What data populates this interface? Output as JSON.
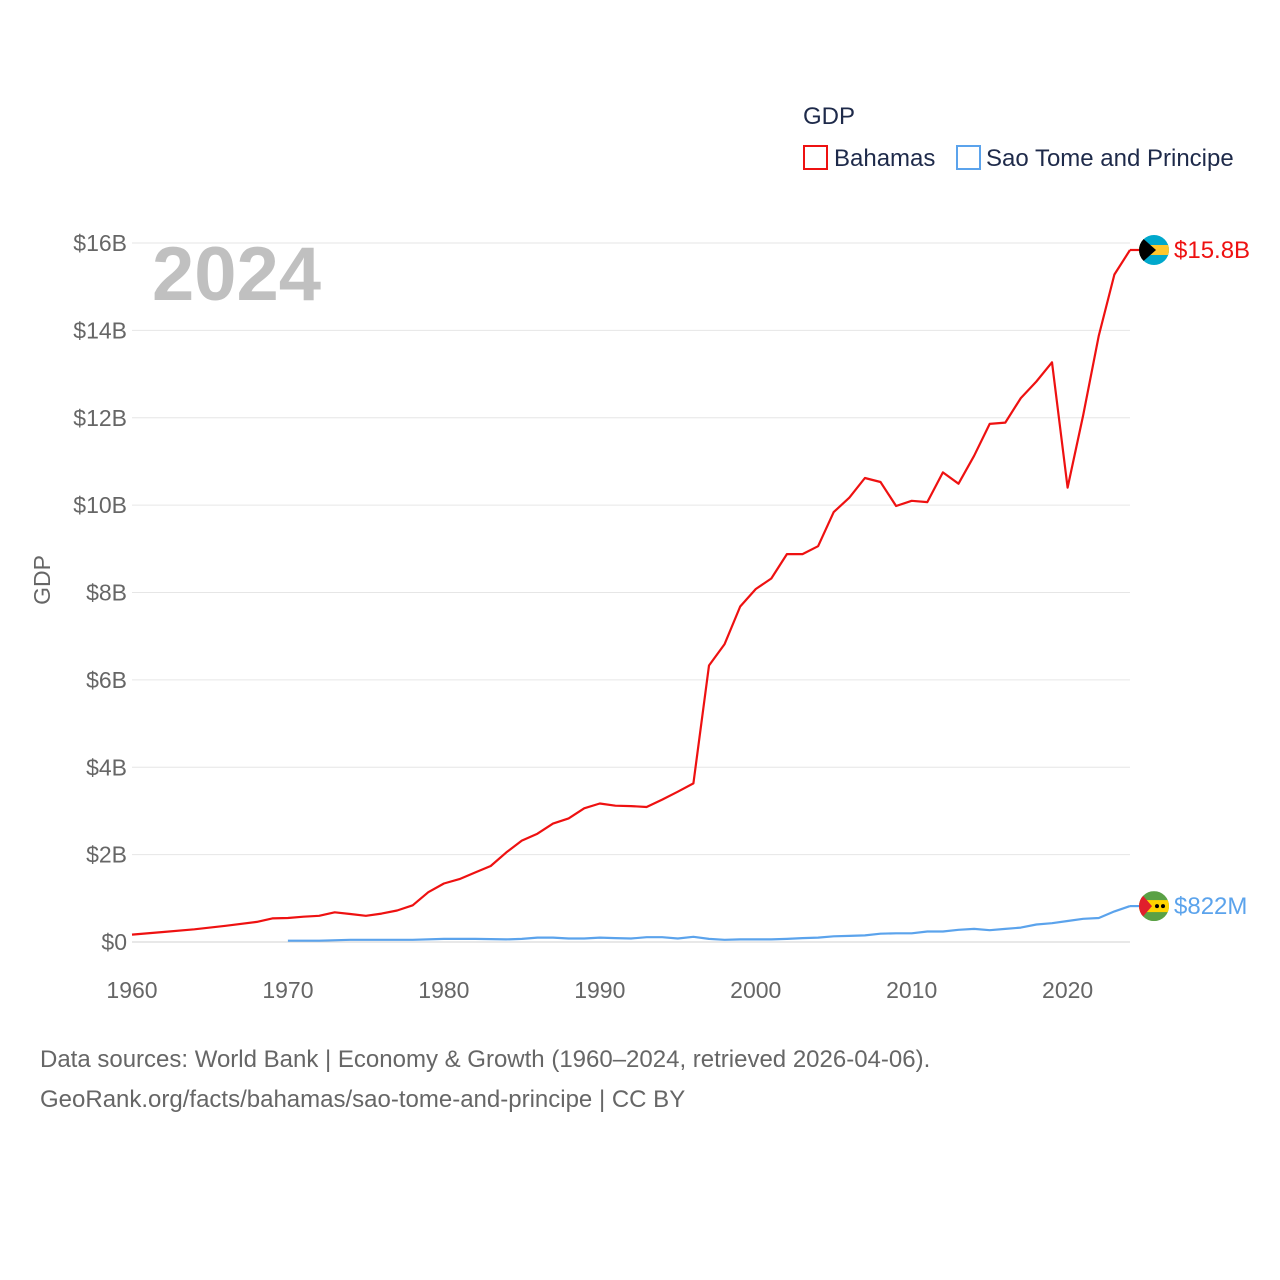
{
  "chart_data": {
    "type": "line",
    "ylabel": "GDP",
    "xlim": [
      1960,
      2024
    ],
    "ylim": [
      0,
      16000000000
    ],
    "x_ticks": [
      {
        "value": 1960,
        "label": "1960"
      },
      {
        "value": 1970,
        "label": "1970"
      },
      {
        "value": 1980,
        "label": "1980"
      },
      {
        "value": 1990,
        "label": "1990"
      },
      {
        "value": 2000,
        "label": "2000"
      },
      {
        "value": 2010,
        "label": "2010"
      },
      {
        "value": 2020,
        "label": "2020"
      }
    ],
    "y_ticks": [
      {
        "value": 0,
        "label": "$0"
      },
      {
        "value": 2000000000,
        "label": "$2B"
      },
      {
        "value": 4000000000,
        "label": "$4B"
      },
      {
        "value": 6000000000,
        "label": "$6B"
      },
      {
        "value": 8000000000,
        "label": "$8B"
      },
      {
        "value": 10000000000,
        "label": "$10B"
      },
      {
        "value": 12000000000,
        "label": "$12B"
      },
      {
        "value": 14000000000,
        "label": "$14B"
      },
      {
        "value": 16000000000,
        "label": "$16B"
      }
    ],
    "grid": true,
    "year_label": "2024",
    "legend": {
      "title": "GDP",
      "position": "top-right"
    },
    "series": [
      {
        "name": "Bahamas",
        "color": "#ee1111",
        "end_label": "$15.8B",
        "icon": "bahamas-flag-icon",
        "x": [
          1960,
          1962,
          1964,
          1966,
          1968,
          1969,
          1970,
          1971,
          1972,
          1973,
          1974,
          1975,
          1976,
          1977,
          1978,
          1979,
          1980,
          1981,
          1982,
          1983,
          1984,
          1985,
          1986,
          1987,
          1988,
          1989,
          1990,
          1991,
          1992,
          1993,
          1994,
          1995,
          1996,
          1997,
          1998,
          1999,
          2000,
          2001,
          2002,
          2003,
          2004,
          2005,
          2006,
          2007,
          2008,
          2009,
          2010,
          2011,
          2012,
          2013,
          2014,
          2015,
          2016,
          2017,
          2018,
          2019,
          2020,
          2021,
          2022,
          2023,
          2024
        ],
        "values": [
          170000000,
          230000000,
          290000000,
          370000000,
          460000000,
          540000000,
          550000000,
          580000000,
          600000000,
          680000000,
          640000000,
          600000000,
          650000000,
          720000000,
          840000000,
          1140000000,
          1340000000,
          1440000000,
          1590000000,
          1740000000,
          2050000000,
          2320000000,
          2480000000,
          2710000000,
          2830000000,
          3060000000,
          3170000000,
          3120000000,
          3110000000,
          3090000000,
          3260000000,
          3440000000,
          3630000000,
          6330000000,
          6820000000,
          7680000000,
          8080000000,
          8320000000,
          8880000000,
          8880000000,
          9060000000,
          9840000000,
          10170000000,
          10620000000,
          10530000000,
          9980000000,
          10100000000,
          10070000000,
          10750000000,
          10490000000,
          11130000000,
          11860000000,
          11890000000,
          12450000000,
          12830000000,
          13270000000,
          10400000000,
          12060000000,
          13880000000,
          15280000000,
          15840000000
        ]
      },
      {
        "name": "Sao Tome and Principe",
        "color": "#5ba3ec",
        "end_label": "$822M",
        "icon": "sao-tome-flag-icon",
        "x": [
          1970,
          1972,
          1974,
          1976,
          1978,
          1980,
          1982,
          1984,
          1985,
          1986,
          1987,
          1988,
          1989,
          1990,
          1991,
          1992,
          1993,
          1994,
          1995,
          1996,
          1997,
          1998,
          1999,
          2000,
          2001,
          2002,
          2003,
          2004,
          2005,
          2006,
          2007,
          2008,
          2009,
          2010,
          2011,
          2012,
          2013,
          2014,
          2015,
          2016,
          2017,
          2018,
          2019,
          2020,
          2021,
          2022,
          2023,
          2024
        ],
        "values": [
          30000000,
          30000000,
          50000000,
          50000000,
          50000000,
          70000000,
          70000000,
          60000000,
          70000000,
          100000000,
          100000000,
          80000000,
          80000000,
          100000000,
          90000000,
          80000000,
          110000000,
          110000000,
          80000000,
          120000000,
          70000000,
          50000000,
          60000000,
          60000000,
          60000000,
          70000000,
          90000000,
          100000000,
          130000000,
          140000000,
          150000000,
          190000000,
          200000000,
          200000000,
          240000000,
          240000000,
          280000000,
          300000000,
          270000000,
          300000000,
          330000000,
          400000000,
          430000000,
          480000000,
          530000000,
          550000000,
          700000000,
          822000000
        ]
      }
    ]
  },
  "footer": {
    "line1": "Data sources: World Bank | Economy & Growth (1960–2024, retrieved 2026-04-06).",
    "line2": "GeoRank.org/facts/bahamas/sao-tome-and-principe | CC BY"
  }
}
